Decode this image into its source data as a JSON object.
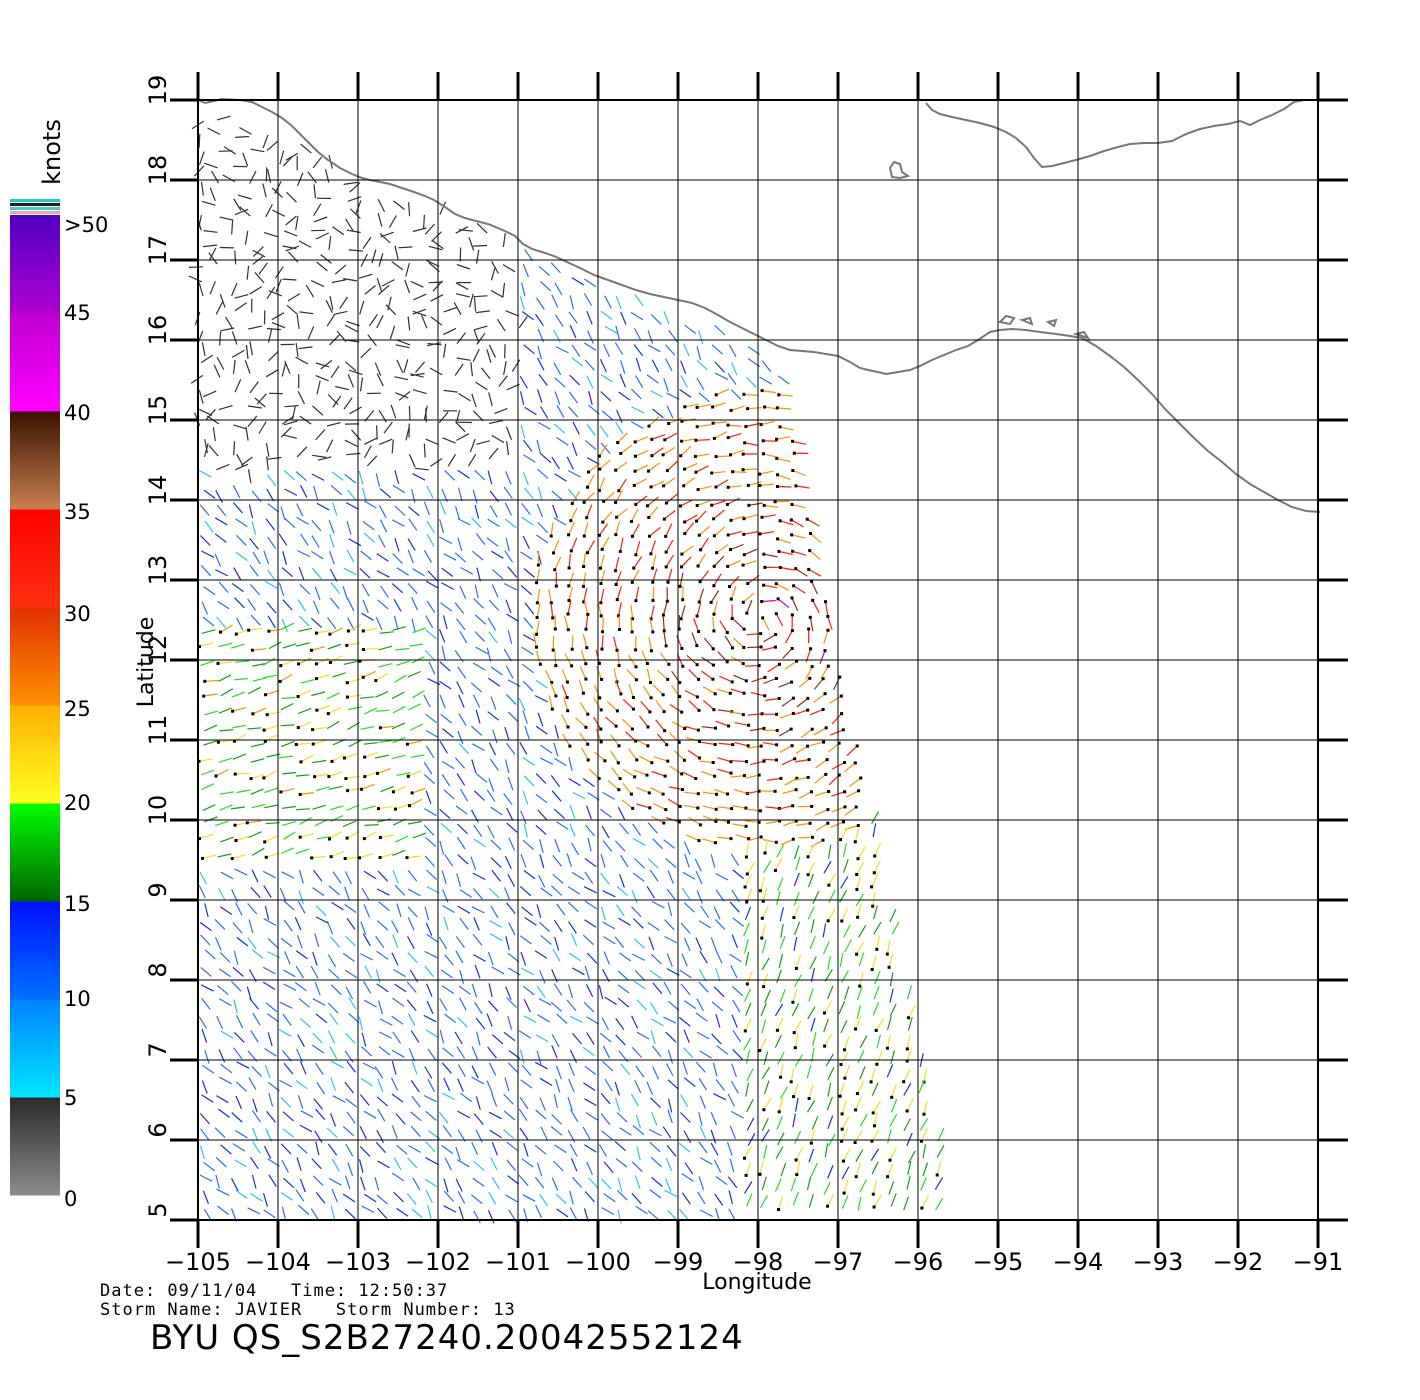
{
  "map": {
    "x_ticks": [
      "−105",
      "−104",
      "−103",
      "−102",
      "−101",
      "−100",
      "−99",
      "−98",
      "−97",
      "−96",
      "−95",
      "−94",
      "−93",
      "−92",
      "−91"
    ],
    "y_ticks": [
      "5",
      "6",
      "7",
      "8",
      "9",
      "10",
      "11",
      "12",
      "13",
      "14",
      "15",
      "16",
      "17",
      "18",
      "19"
    ],
    "xlabel": "Longitude",
    "ylabel": "Latitude",
    "lon_range": [
      -105,
      -91
    ],
    "lat_range": [
      5,
      19
    ],
    "coastline_color": "#777777",
    "grid_color": "#000000"
  },
  "legend": {
    "unit": "knots",
    "labels": [
      ">50",
      "45",
      "40",
      "35",
      "30",
      "25",
      "20",
      "15",
      "10",
      "5",
      "0"
    ],
    "bands": [
      {
        "range": "0-5",
        "from": "#8c8c8c",
        "to": "#2a2a2a"
      },
      {
        "range": "5-10",
        "from": "#00e8ff",
        "to": "#0080ff"
      },
      {
        "range": "10-15",
        "from": "#0070ff",
        "to": "#0010ff"
      },
      {
        "range": "15-20",
        "from": "#006400",
        "to": "#00ff00"
      },
      {
        "range": "20-25",
        "from": "#ffff20",
        "to": "#ffb000"
      },
      {
        "range": "25-30",
        "from": "#ff9000",
        "to": "#e03000"
      },
      {
        "range": "30-35",
        "from": "#ff3010",
        "to": "#ff0000"
      },
      {
        "range": "35-40",
        "from": "#c88050",
        "to": "#3a1000"
      },
      {
        "range": "40-45",
        "from": "#ff00ff",
        "to": "#c000d0"
      },
      {
        "range": "45-50",
        "from": "#b000d0",
        "to": "#5000c0"
      }
    ]
  },
  "footer": {
    "date_line": "Date: 09/11/04   Time: 12:50:37",
    "storm_line": "Storm Name: JAVIER   Storm Number: 13",
    "title": "BYU QS_S2B27240.20042552124"
  }
}
